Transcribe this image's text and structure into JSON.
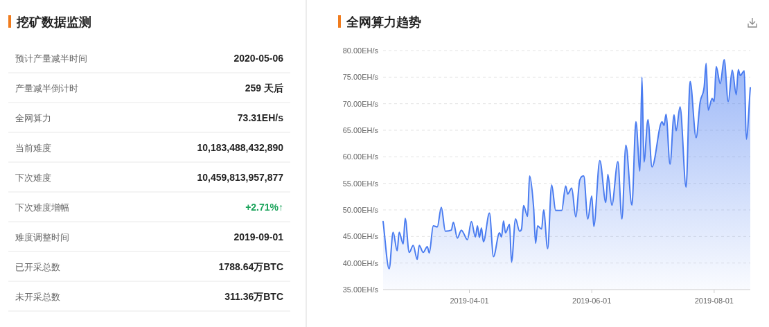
{
  "chart_data": [
    {
      "type": "other",
      "title": "挖矿数据监测",
      "categories": [
        "预计产量减半时间",
        "产量减半倒计时",
        "全网算力",
        "当前难度",
        "下次难度",
        "下次难度增幅",
        "难度调整时间",
        "已开采总数",
        "未开采总数"
      ],
      "value_labels": [
        "2020-05-06",
        "259 天后",
        "73.31EH/s",
        "10,183,488,432,890",
        "10,459,813,957,877",
        "+2.71%↑",
        "2019-09-01",
        "1788.64万BTC",
        "311.36万BTC"
      ],
      "colors": [
        "#222222",
        "#222222",
        "#222222",
        "#222222",
        "#222222",
        "#1aa35a",
        "#222222",
        "#222222",
        "#222222"
      ]
    },
    {
      "type": "area",
      "title": "全网算力趋势",
      "grid": "y",
      "xlim": [
        "2019-02-17",
        "2019-08-19"
      ],
      "xticks": [
        "2019-04-01",
        "2019-06-01",
        "2019-08-01"
      ],
      "ylim": [
        35,
        80
      ],
      "yticks": [
        {
          "value": 35,
          "label": "35.00EH/s"
        },
        {
          "value": 40,
          "label": "40.00EH/s"
        },
        {
          "value": 45,
          "label": "45.00EH/s"
        },
        {
          "value": 50,
          "label": "50.00EH/s"
        },
        {
          "value": 55,
          "label": "55.00EH/s"
        },
        {
          "value": 60,
          "label": "60.00EH/s"
        },
        {
          "value": 65,
          "label": "65.00EH/s"
        },
        {
          "value": 70,
          "label": "70.00EH/s"
        },
        {
          "value": 75,
          "label": "75.00EH/s"
        },
        {
          "value": 80,
          "label": "80.00EH/s"
        }
      ],
      "series": [
        {
          "color": "#4a7cf0",
          "x": [
            "2019-02-17",
            "2019-02-20",
            "2019-02-22",
            "2019-02-24",
            "2019-02-25",
            "2019-02-27",
            "2019-02-28",
            "2019-03-02",
            "2019-03-04",
            "2019-03-06",
            "2019-03-07",
            "2019-03-09",
            "2019-03-11",
            "2019-03-12",
            "2019-03-14",
            "2019-03-16",
            "2019-03-18",
            "2019-03-20",
            "2019-03-23",
            "2019-03-24",
            "2019-03-26",
            "2019-03-28",
            "2019-03-29",
            "2019-03-31",
            "2019-04-02",
            "2019-04-04",
            "2019-04-05",
            "2019-04-06",
            "2019-04-07",
            "2019-04-08",
            "2019-04-11",
            "2019-04-13",
            "2019-04-16",
            "2019-04-17",
            "2019-04-18",
            "2019-04-19",
            "2019-04-21",
            "2019-04-22",
            "2019-04-24",
            "2019-04-26",
            "2019-04-27",
            "2019-04-28",
            "2019-04-30",
            "2019-05-01",
            "2019-05-03",
            "2019-05-04",
            "2019-05-05",
            "2019-05-07",
            "2019-05-08",
            "2019-05-10",
            "2019-05-12",
            "2019-05-14",
            "2019-05-17",
            "2019-05-19",
            "2019-05-20",
            "2019-05-22",
            "2019-05-24",
            "2019-05-26",
            "2019-05-28",
            "2019-05-30",
            "2019-06-01",
            "2019-06-02",
            "2019-06-05",
            "2019-06-08",
            "2019-06-09",
            "2019-06-11",
            "2019-06-14",
            "2019-06-16",
            "2019-06-18",
            "2019-06-21",
            "2019-06-23",
            "2019-06-25",
            "2019-06-26",
            "2019-06-27",
            "2019-06-29",
            "2019-07-01",
            "2019-07-06",
            "2019-07-07",
            "2019-07-08",
            "2019-07-10",
            "2019-07-12",
            "2019-07-13",
            "2019-07-15",
            "2019-07-18",
            "2019-07-20",
            "2019-07-23",
            "2019-07-25",
            "2019-07-27",
            "2019-07-28",
            "2019-07-29",
            "2019-07-31",
            "2019-08-01",
            "2019-08-02",
            "2019-08-04",
            "2019-08-06",
            "2019-08-08",
            "2019-08-10",
            "2019-08-12",
            "2019-08-13",
            "2019-08-14",
            "2019-08-16",
            "2019-08-17",
            "2019-08-19"
          ],
          "values": [
            47.8,
            38.9,
            45.8,
            42.3,
            45.8,
            43.6,
            48.4,
            42.0,
            43.3,
            40.7,
            43.3,
            42.0,
            43.1,
            41.9,
            47.0,
            46.8,
            50.5,
            46.0,
            46.2,
            47.7,
            44.7,
            46.2,
            45.7,
            44.4,
            47.8,
            44.9,
            47.0,
            44.8,
            46.6,
            44.0,
            49.4,
            41.2,
            45.7,
            44.9,
            47.9,
            45.7,
            47.3,
            40.2,
            48.3,
            46.0,
            46.4,
            50.8,
            48.8,
            56.4,
            50.5,
            43.7,
            47.0,
            46.4,
            50.0,
            42.7,
            54.7,
            49.9,
            49.9,
            54.5,
            53.0,
            54.1,
            48.7,
            55.6,
            56.4,
            48.3,
            52.6,
            46.9,
            59.3,
            51.4,
            56.7,
            50.9,
            59.1,
            48.3,
            62.2,
            50.9,
            66.6,
            57.3,
            75.0,
            59.0,
            67.0,
            58.1,
            66.6,
            65.9,
            68.0,
            58.6,
            67.9,
            64.9,
            69.4,
            54.3,
            74.2,
            63.6,
            70.3,
            73.1,
            77.6,
            68.8,
            71.0,
            70.4,
            77.0,
            73.8,
            78.3,
            70.4,
            76.3,
            71.7,
            76.4,
            75.3,
            76.2,
            63.3,
            73.0
          ]
        }
      ]
    }
  ]
}
